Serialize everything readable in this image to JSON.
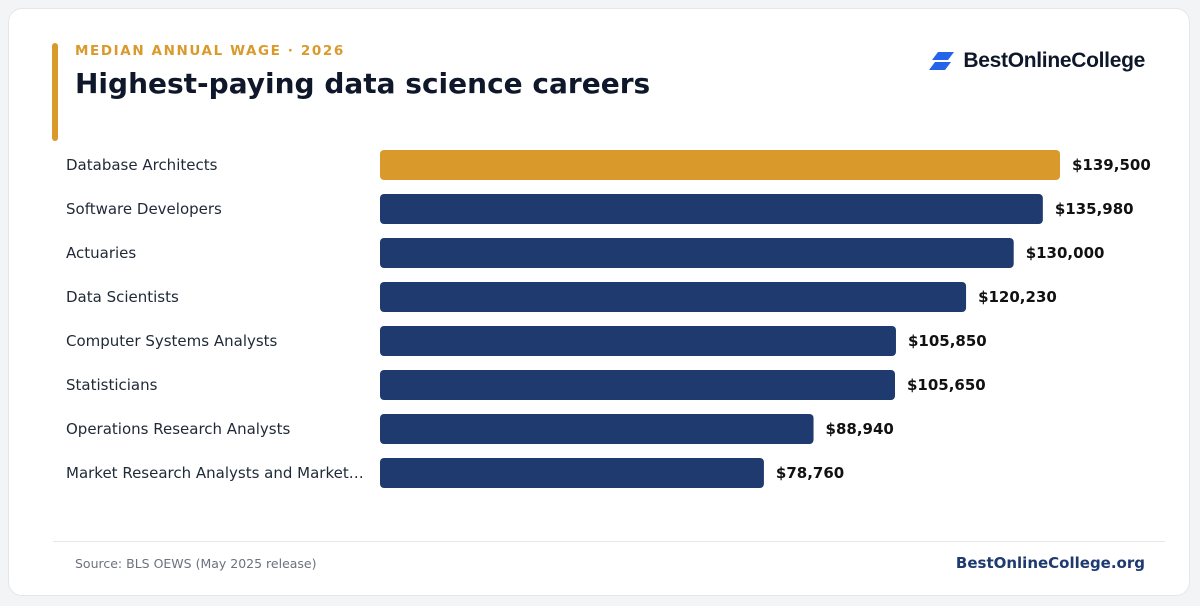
{
  "header": {
    "eyebrow": "MEDIAN ANNUAL WAGE · 2026",
    "title": "Highest-paying data science careers"
  },
  "brand": {
    "name": "BestOnlineCollege",
    "logo_icon": "stacked-parallelogram-logo",
    "logo_color": "#2563eb"
  },
  "footer": {
    "source": "Source: BLS OEWS (May 2025 release)",
    "site": "BestOnlineCollege.org"
  },
  "colors": {
    "highlight": "#d99a2b",
    "bar": "#1e3a6e",
    "label": "#1f2937",
    "value": "#111111"
  },
  "chart_data": {
    "type": "bar",
    "orientation": "horizontal",
    "categories": [
      "Database Architects",
      "Software Developers",
      "Actuaries",
      "Data Scientists",
      "Computer Systems Analysts",
      "Statisticians",
      "Operations Research Analysts",
      "Market Research Analysts and Market…"
    ],
    "values": [
      139500,
      135980,
      130000,
      120230,
      105850,
      105650,
      88940,
      78760
    ],
    "value_labels": [
      "$139,500",
      "$135,980",
      "$130,000",
      "$120,230",
      "$105,850",
      "$105,650",
      "$88,940",
      "$78,760"
    ],
    "highlight_index": 0,
    "title": "Highest-paying data science careers",
    "xlabel": "",
    "ylabel": "",
    "xlim": [
      0,
      139500
    ],
    "grid": false,
    "legend": "none"
  }
}
